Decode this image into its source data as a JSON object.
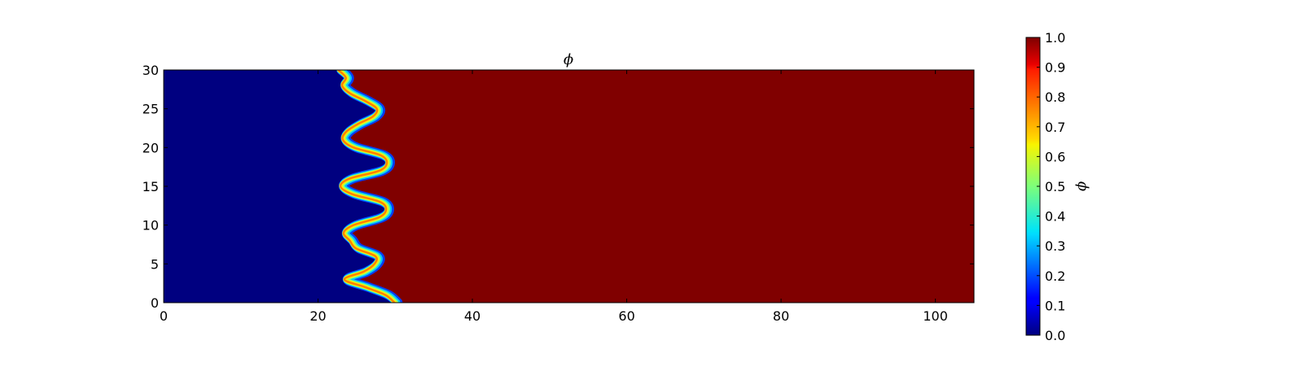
{
  "chart_data": {
    "type": "heatmap",
    "title": "ϕ",
    "colormap": "jet",
    "xlim": [
      0,
      105
    ],
    "ylim": [
      0,
      30
    ],
    "xticks": [
      0,
      20,
      40,
      60,
      80,
      100
    ],
    "yticks": [
      0,
      5,
      10,
      15,
      20,
      25,
      30
    ],
    "field_description": "phase field phi: 0 on the left, 1 on the right, separated by a wavy interface with interface width ~0.8",
    "interface_profile": {
      "y": [
        0,
        1,
        2,
        3,
        4,
        5,
        6,
        7,
        8,
        9,
        10,
        11,
        12,
        13,
        14,
        15,
        16,
        17,
        18,
        19,
        20,
        21,
        22,
        23,
        24,
        25,
        26,
        27,
        28,
        29,
        30
      ],
      "x": [
        29.8,
        28.6,
        26.0,
        23.3,
        25.8,
        27.2,
        27.3,
        24.8,
        24.0,
        23.2,
        24.5,
        27.8,
        28.7,
        27.9,
        24.3,
        22.8,
        24.0,
        27.8,
        28.8,
        28.0,
        24.5,
        23.1,
        23.5,
        25.0,
        27.0,
        27.5,
        26.0,
        24.0,
        23.0,
        23.5,
        22.5
      ]
    },
    "colorbar": {
      "label": "ϕ",
      "min": 0.0,
      "max": 1.0,
      "ticks": [
        "0.0",
        "0.1",
        "0.2",
        "0.3",
        "0.4",
        "0.5",
        "0.6",
        "0.7",
        "0.8",
        "0.9",
        "1.0"
      ]
    },
    "colors": {
      "low": "#000080",
      "high": "#800000"
    }
  }
}
